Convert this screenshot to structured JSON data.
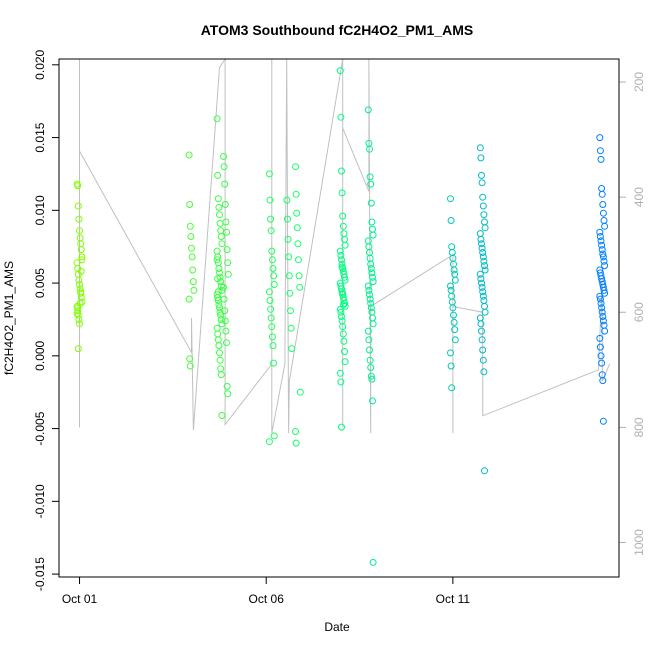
{
  "chart_data": {
    "type": "scatter",
    "title": "ATOM3 Southbound fC2H4O2_PM1_AMS",
    "xlabel": "Date",
    "ylabel": "fC2H4O2_PM1_AMS",
    "x_unit": "days since Oct 01",
    "xlim": [
      -0.55,
      14.45
    ],
    "ylim": [
      -0.0152,
      0.0204
    ],
    "x_ticks": [
      {
        "value": 0,
        "label": "Oct 01"
      },
      {
        "value": 5,
        "label": "Oct 06"
      },
      {
        "value": 10,
        "label": "Oct 11"
      }
    ],
    "y_ticks": [
      {
        "value": -0.015,
        "label": "-0.015"
      },
      {
        "value": -0.01,
        "label": "-0.010"
      },
      {
        "value": -0.005,
        "label": "-0.005"
      },
      {
        "value": 0.0,
        "label": "0.000"
      },
      {
        "value": 0.005,
        "label": "0.005"
      },
      {
        "value": 0.01,
        "label": "0.010"
      },
      {
        "value": 0.015,
        "label": "0.015"
      },
      {
        "value": 0.02,
        "label": "0.020"
      }
    ],
    "y2lim": [
      1060,
      160
    ],
    "y2_ticks": [
      {
        "value": 200,
        "label": "200"
      },
      {
        "value": 400,
        "label": "400"
      },
      {
        "value": 600,
        "label": "600"
      },
      {
        "value": 800,
        "label": "800"
      },
      {
        "value": 1000,
        "label": "1000"
      }
    ],
    "grid": false,
    "legend": "none",
    "colors": {
      "point_start": "#80ff00",
      "point_mid": "#00ff80",
      "point_end": "#0080ff",
      "altitude_line": "#c0c0c0"
    },
    "series": [
      {
        "name": "fC2H4O2_PM1_AMS",
        "clusters": [
          {
            "x": 0.0,
            "ys": [
              0.0118,
              0.0117,
              0.0103,
              0.0094,
              0.0086,
              0.0081,
              0.0077,
              0.0073,
              0.0068,
              0.0064,
              0.006,
              0.0056,
              0.0052,
              0.0049,
              0.0046,
              0.0043,
              0.004,
              0.0037,
              0.0034,
              0.0031,
              0.0028,
              0.0025,
              0.0022,
              0.0036,
              0.0044,
              0.0058,
              0.0066,
              0.0029,
              0.0033,
              0.0005
            ]
          },
          {
            "x": 3.0,
            "ys": [
              0.0138,
              0.0104,
              0.0089,
              0.0082,
              0.0074,
              0.0068,
              0.0059,
              0.0051,
              0.0045,
              0.0039,
              -0.0002,
              -0.0007
            ]
          },
          {
            "x": 3.75,
            "ys": [
              0.0163,
              0.0124,
              0.0108,
              0.0102,
              0.0097,
              0.0091,
              0.0086,
              0.0082,
              0.0077,
              0.0072,
              0.0068,
              0.0064,
              0.006,
              0.0057,
              0.0054,
              0.0051,
              0.0048,
              0.0045,
              0.0042,
              0.004,
              0.0038,
              0.0035,
              0.0033,
              0.003,
              0.0028,
              0.0025,
              0.0022,
              0.0019,
              0.0015,
              0.0011,
              0.0007,
              0.0002,
              -0.0003,
              -0.0009,
              -0.0013,
              -0.0041,
              0.0066,
              0.0053,
              0.0044
            ]
          },
          {
            "x": 3.92,
            "ys": [
              0.0137,
              0.013,
              0.0118,
              0.0104,
              0.0092,
              0.0085,
              0.0073,
              0.0064,
              0.0056,
              0.0047,
              0.0039,
              0.0031,
              0.0024,
              0.0017,
              0.0009,
              -0.0021,
              -0.0026
            ]
          },
          {
            "x": 5.15,
            "ys": [
              0.0125,
              0.0107,
              0.0094,
              0.0086,
              0.0072,
              0.0066,
              0.006,
              0.0055,
              0.0049,
              0.0044,
              0.0038,
              0.0032,
              0.0026,
              0.002,
              0.0013,
              0.0007,
              -0.0005,
              -0.0055,
              -0.0059
            ]
          },
          {
            "x": 5.62,
            "ys": [
              0.0107,
              0.0094,
              0.008,
              0.0068,
              0.0055,
              0.0043,
              0.0031,
              0.0019,
              0.0005
            ]
          },
          {
            "x": 5.85,
            "ys": [
              0.013,
              0.0111,
              0.0098,
              0.0088,
              0.0077,
              0.0066,
              0.0055,
              0.0047,
              -0.0025,
              -0.0052,
              -0.006
            ]
          },
          {
            "x": 7.05,
            "ys": [
              0.0196,
              0.0164,
              0.0127,
              0.0112,
              0.0096,
              0.0089,
              0.0084,
              0.008,
              0.0076,
              0.0072,
              0.0069,
              0.0066,
              0.0063,
              0.006,
              0.0058,
              0.0056,
              0.0054,
              0.0052,
              0.005,
              0.0048,
              0.0046,
              0.0044,
              0.0042,
              0.004,
              0.0038,
              0.0036,
              0.0034,
              0.0032,
              0.003,
              0.0027,
              0.0024,
              0.002,
              0.0015,
              0.001,
              0.0003,
              -0.0004,
              -0.0012,
              -0.0018,
              -0.0049,
              0.0061,
              0.0043,
              0.0035
            ]
          },
          {
            "x": 7.8,
            "ys": [
              0.0169,
              0.0146,
              0.0142,
              0.0123,
              0.0118,
              0.0105,
              0.0092,
              0.0087,
              0.0083,
              0.0079,
              0.0075,
              0.0071,
              0.0067,
              0.0063,
              0.006,
              0.0057,
              0.0054,
              0.0051,
              0.0048,
              0.0045,
              0.0042,
              0.0039,
              0.0036,
              0.0033,
              0.003,
              0.0026,
              0.0022,
              0.0017,
              0.0011,
              0.0004,
              -0.0003,
              -0.0008,
              -0.0014,
              -0.0016,
              -0.0031,
              -0.0142
            ]
          },
          {
            "x": 10.0,
            "ys": [
              0.0108,
              0.0093,
              0.0075,
              0.0071,
              0.0067,
              0.0063,
              0.0059,
              0.0056,
              0.0052,
              0.0048,
              0.0045,
              0.0041,
              0.0037,
              0.0033,
              0.0028,
              0.0023,
              0.0018,
              0.0011,
              0.0002,
              -0.0007,
              -0.0022
            ]
          },
          {
            "x": 10.8,
            "ys": [
              0.0143,
              0.0136,
              0.0124,
              0.0119,
              0.0109,
              0.0103,
              0.0097,
              0.0092,
              0.0088,
              0.0084,
              0.008,
              0.0077,
              0.0074,
              0.0071,
              0.0068,
              0.0065,
              0.0062,
              0.0059,
              0.0056,
              0.0053,
              0.005,
              0.0047,
              0.0044,
              0.0041,
              0.0038,
              0.0034,
              0.003,
              0.0026,
              0.0022,
              0.0017,
              0.0011,
              0.0004,
              -0.0003,
              -0.0011,
              -0.0079
            ]
          },
          {
            "x": 14.0,
            "ys": [
              0.015,
              0.0141,
              0.0135,
              0.0115,
              0.0111,
              0.0104,
              0.0098,
              0.0093,
              0.0089,
              0.0085,
              0.0082,
              0.0079,
              0.0076,
              0.0073,
              0.007,
              0.0068,
              0.0065,
              0.0062,
              0.0059,
              0.0057,
              0.0055,
              0.0053,
              0.0051,
              0.0049,
              0.0047,
              0.0045,
              0.0043,
              0.0041,
              0.0039,
              0.0036,
              0.0033,
              0.003,
              0.0027,
              0.0024,
              0.0021,
              0.0017,
              0.0012,
              0.0006,
              0.0,
              -0.0005,
              -0.0013,
              -0.0017,
              -0.0045
            ]
          }
        ]
      },
      {
        "name": "altitude",
        "axis": "right",
        "path": [
          [
            0.0,
            160
          ],
          [
            0.0,
            800
          ],
          [
            0.0,
            320
          ],
          [
            3.0,
            670
          ],
          [
            3.0,
            610
          ],
          [
            3.05,
            805
          ],
          [
            3.75,
            175
          ],
          [
            3.9,
            160
          ],
          [
            3.9,
            795
          ],
          [
            5.15,
            690
          ],
          [
            5.15,
            160
          ],
          [
            5.15,
            810
          ],
          [
            5.5,
            690
          ],
          [
            5.55,
            160
          ],
          [
            5.6,
            810
          ],
          [
            5.62,
            720
          ],
          [
            7.05,
            160
          ],
          [
            7.05,
            800
          ],
          [
            7.05,
            280
          ],
          [
            7.75,
            390
          ],
          [
            7.75,
            160
          ],
          [
            7.8,
            810
          ],
          [
            7.8,
            590
          ],
          [
            10.0,
            500
          ],
          [
            10.0,
            810
          ],
          [
            10.0,
            590
          ],
          [
            10.8,
            600
          ],
          [
            10.8,
            780
          ],
          [
            13.9,
            700
          ],
          [
            14.0,
            540
          ],
          [
            14.0,
            720
          ],
          [
            14.2,
            690
          ]
        ]
      }
    ]
  }
}
